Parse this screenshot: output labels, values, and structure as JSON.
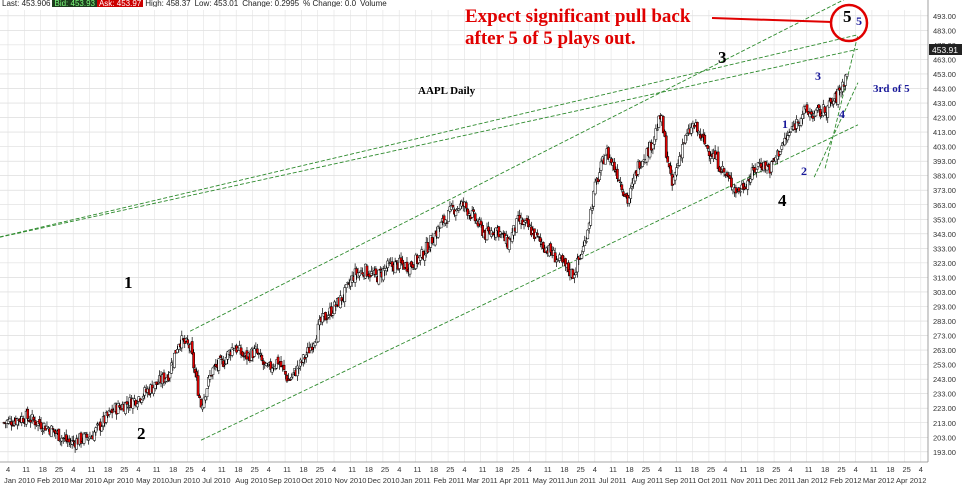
{
  "quote_bar": {
    "items": [
      "Last: 453.906",
      "Bid: 453.93",
      "Ask: 453.97",
      "High: 458.37",
      "Low: 453.01",
      "Change: 0.2995",
      "% Change: 0.0",
      "Volume"
    ]
  },
  "chart_data": {
    "type": "candlestick",
    "title": "AAPL Daily",
    "last_price": "453.91",
    "price_axis_ticks": [
      193,
      203,
      213,
      223,
      233,
      243,
      253,
      263,
      273,
      283,
      293,
      303,
      313,
      323,
      333,
      343,
      353,
      363,
      373,
      383,
      393,
      403,
      413,
      423,
      433,
      443,
      453,
      463,
      473,
      483,
      493
    ],
    "ylim": [
      186,
      497
    ],
    "date_axis_text": [
      "Jan 2010",
      "Feb 2010",
      "Mar 2010",
      "Apr 2010",
      "May 2010",
      "Jun 2010",
      "Jul 2010",
      "Aug 2010",
      "Sep 2010",
      "Oct 2010",
      "Nov 2010",
      "Dec 2010",
      "Jan 2011",
      "Feb 2011",
      "Mar 2011",
      "Apr 2011",
      "May 2011",
      "Jun 2011",
      "Jul 2011",
      "Aug 2011",
      "Sep 2011",
      "Oct 2011",
      "Nov 2011",
      "Dec 2011",
      "Jan 2012",
      "Feb 2012",
      "Mar 2012",
      "Apr 2012"
    ],
    "price_path": [
      [
        0,
        213
      ],
      [
        2,
        217
      ],
      [
        4,
        210
      ],
      [
        6,
        199
      ],
      [
        8,
        204
      ],
      [
        10,
        222
      ],
      [
        12,
        229
      ],
      [
        14,
        240
      ],
      [
        15,
        246
      ],
      [
        16,
        270
      ],
      [
        17,
        265
      ],
      [
        18,
        225
      ],
      [
        19,
        249
      ],
      [
        20,
        255
      ],
      [
        21,
        266
      ],
      [
        22,
        258
      ],
      [
        23,
        262
      ],
      [
        24,
        249
      ],
      [
        25,
        256
      ],
      [
        26,
        242
      ],
      [
        27,
        252
      ],
      [
        28,
        265
      ],
      [
        29,
        283
      ],
      [
        30,
        291
      ],
      [
        31,
        300
      ],
      [
        32,
        315
      ],
      [
        33,
        318
      ],
      [
        34,
        313
      ],
      [
        35,
        320
      ],
      [
        36,
        322
      ],
      [
        37,
        321
      ],
      [
        38,
        326
      ],
      [
        39,
        338
      ],
      [
        40,
        350
      ],
      [
        41,
        360
      ],
      [
        42,
        363
      ],
      [
        43,
        353
      ],
      [
        44,
        342
      ],
      [
        45,
        347
      ],
      [
        46,
        336
      ],
      [
        47,
        352
      ],
      [
        48,
        347
      ],
      [
        49,
        337
      ],
      [
        50,
        330
      ],
      [
        51,
        322
      ],
      [
        52,
        315
      ],
      [
        53,
        335
      ],
      [
        54,
        375
      ],
      [
        55,
        400
      ],
      [
        56,
        385
      ],
      [
        57,
        365
      ],
      [
        58,
        392
      ],
      [
        59,
        402
      ],
      [
        60,
        424
      ],
      [
        61,
        375
      ],
      [
        62,
        405
      ],
      [
        63,
        418
      ],
      [
        64,
        405
      ],
      [
        65,
        395
      ],
      [
        66,
        382
      ],
      [
        67,
        372
      ],
      [
        68,
        380
      ],
      [
        69,
        392
      ],
      [
        70,
        388
      ],
      [
        71,
        403
      ],
      [
        72,
        415
      ],
      [
        73,
        427
      ],
      [
        74,
        425
      ],
      [
        75,
        428
      ],
      [
        76,
        436
      ],
      [
        77,
        453
      ]
    ],
    "wave_labels_primary": [
      "1",
      "2",
      "3",
      "4",
      "5"
    ],
    "wave_labels_minor": [
      "1",
      "2",
      "3",
      "4",
      "5"
    ],
    "annotations": {
      "callout_line1": "Expect significant pull back",
      "callout_line2": "after 5 of 5 plays out.",
      "third_of_five": "3rd of 5"
    },
    "grid": true,
    "up_color": "#ffffff",
    "down_color": "#e00000",
    "trendline_color": "#2e8b2e",
    "callout_color": "#e00000"
  }
}
